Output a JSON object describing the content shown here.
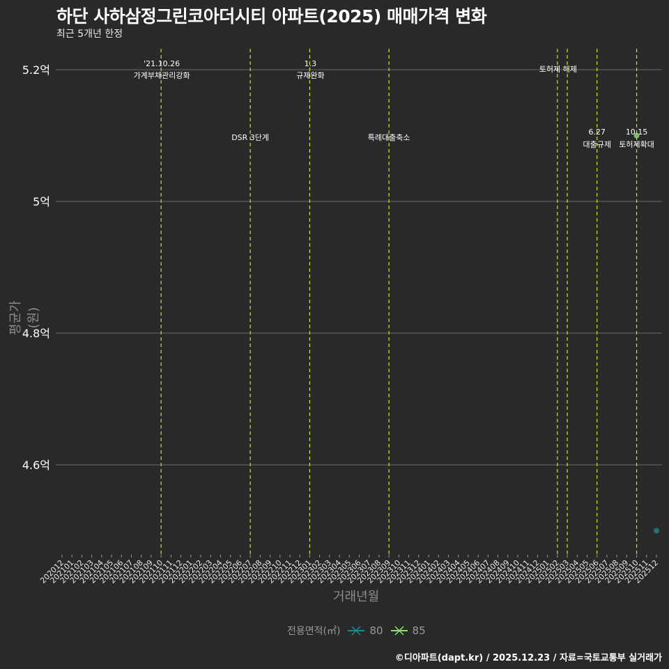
{
  "header": {
    "title": "하단 사하삼정그린코아더시티 아파트(2025) 매매가격 변화",
    "subtitle": "최근 5개년 한정"
  },
  "footer": {
    "credit": "©디아파트(dapt.kr) / 2025.12.23 / 자료=국토교통부 실거래가"
  },
  "legend": {
    "title": "전용면적(㎡)",
    "items": [
      {
        "label": "80",
        "color": "#1f8a88"
      },
      {
        "label": "85",
        "color": "#8fe07a"
      }
    ]
  },
  "colors": {
    "background": "#2a292a",
    "grid": "#6b6b6b",
    "event_line": "#d8e020",
    "text": "#ffffff",
    "axis_title": "#8c8c8c"
  },
  "chart_data": {
    "type": "scatter",
    "title": "하단 사하삼정그린코아더시티 아파트(2025) 매매가격 변화",
    "subtitle": "최근 5개년 한정",
    "xlabel": "거래년월",
    "ylabel": "평균가(원)",
    "ylim": [
      4.43,
      5.23
    ],
    "yticks": [
      "4.6억",
      "4.8억",
      "5억",
      "5.2억"
    ],
    "ytick_values": [
      4.6,
      4.8,
      5.0,
      5.2
    ],
    "grid": true,
    "legend_position": "bottom",
    "categories": [
      "202012",
      "202101",
      "202102",
      "202103",
      "202104",
      "202105",
      "202106",
      "202107",
      "202108",
      "202109",
      "202110",
      "202111",
      "202112",
      "202201",
      "202202",
      "202203",
      "202204",
      "202205",
      "202206",
      "202207",
      "202208",
      "202209",
      "202210",
      "202211",
      "202212",
      "202301",
      "202302",
      "202303",
      "202304",
      "202305",
      "202306",
      "202307",
      "202308",
      "202309",
      "202310",
      "202311",
      "202312",
      "202401",
      "202402",
      "202403",
      "202404",
      "202405",
      "202406",
      "202407",
      "202408",
      "202409",
      "202410",
      "202411",
      "202412",
      "202501",
      "202502",
      "202503",
      "202504",
      "202505",
      "202506",
      "202507",
      "202508",
      "202509",
      "202510",
      "202511",
      "202512"
    ],
    "series": [
      {
        "name": "80",
        "color": "#1f8a88",
        "points": [
          {
            "x": "202512",
            "y": 4.5
          }
        ]
      },
      {
        "name": "85",
        "color": "#8fe07a",
        "points": [
          {
            "x": "202510",
            "y": 5.1
          }
        ]
      }
    ],
    "annotations": [
      {
        "x": "202110",
        "date": "'21.10.26",
        "label": "가계부채관리강화",
        "row": "top"
      },
      {
        "x": "202207",
        "date": "",
        "label": "DSR 3단계",
        "row": "mid"
      },
      {
        "x": "202301",
        "date": "1.3",
        "label": "규제완화",
        "row": "top"
      },
      {
        "x": "202309",
        "date": "",
        "label": "특례대출축소",
        "row": "mid"
      },
      {
        "x": "202502",
        "date": "",
        "label": "토허제 해제",
        "row": "top"
      },
      {
        "x": "202503",
        "date": "",
        "label": "",
        "row": "none"
      },
      {
        "x": "202506",
        "date": "6.27",
        "label": "대출규제",
        "row": "mid"
      },
      {
        "x": "202510",
        "date": "10.15",
        "label": "토허제확대",
        "row": "mid"
      }
    ]
  }
}
